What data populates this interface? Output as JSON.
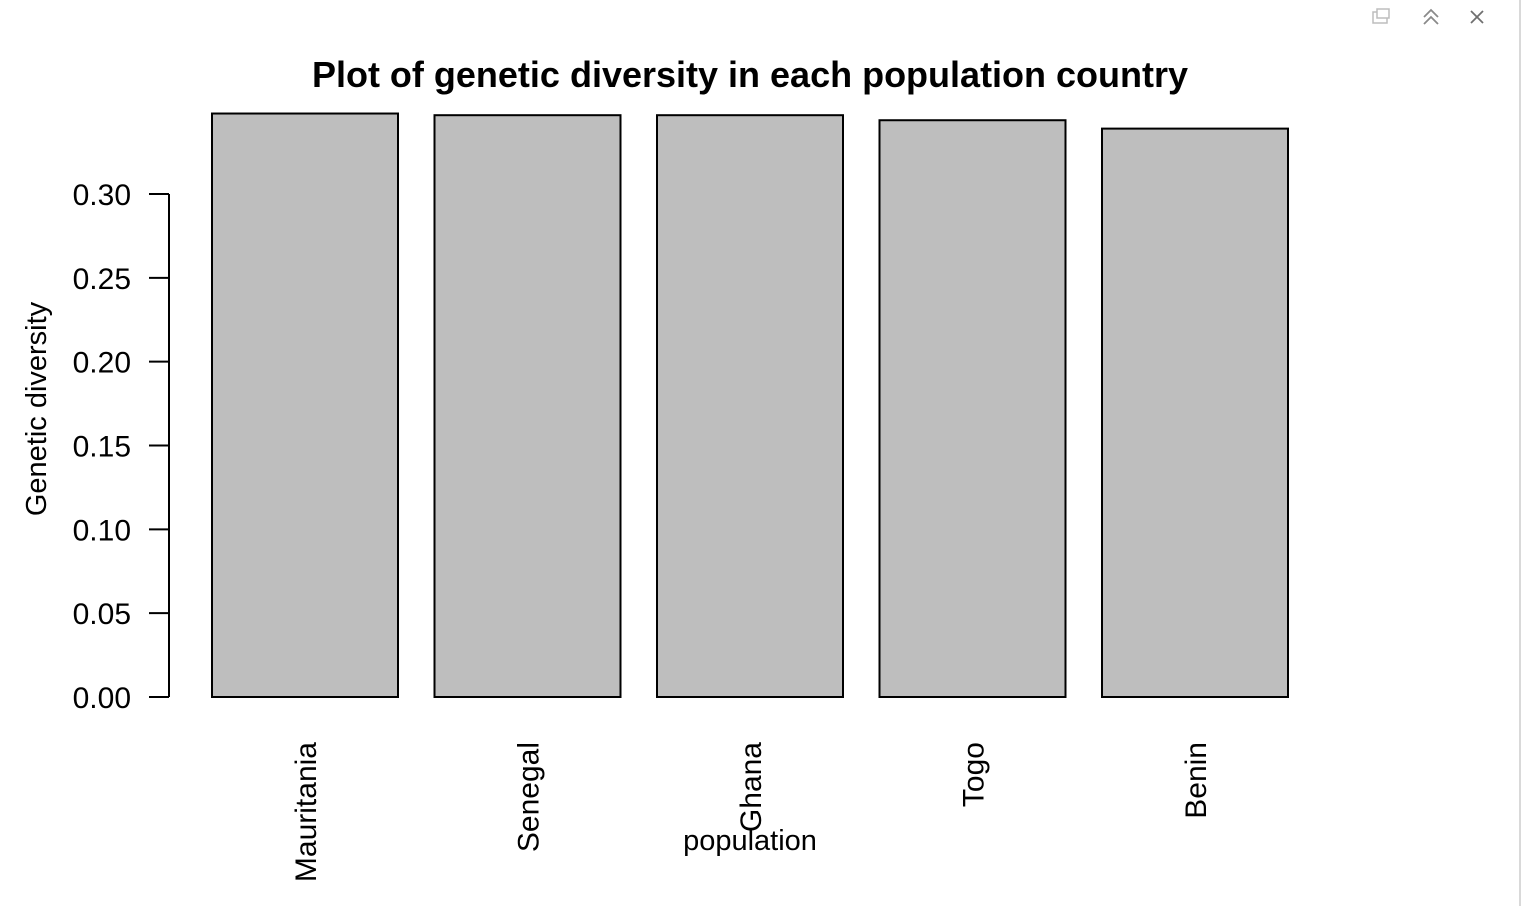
{
  "window_controls": {
    "popout_icon": "popout-icon",
    "collapse_icon": "double-chevron-up-icon",
    "close_icon": "close-icon"
  },
  "chart_data": {
    "type": "bar",
    "title": "Plot of genetic diversity in each population country",
    "xlabel": "population",
    "ylabel": "Genetic diversity",
    "categories": [
      "Mauritania",
      "Senegal",
      "Ghana",
      "Togo",
      "Benin"
    ],
    "values": [
      0.348,
      0.347,
      0.347,
      0.344,
      0.339
    ],
    "ylim": [
      0,
      0.3
    ],
    "yticks": [
      0.0,
      0.05,
      0.1,
      0.15,
      0.2,
      0.25,
      0.3
    ],
    "ytick_labels": [
      "0.00",
      "0.05",
      "0.10",
      "0.15",
      "0.20",
      "0.25",
      "0.30"
    ],
    "bar_color": "#bebebe",
    "bar_edge_color": "#000000",
    "grid": false,
    "legend": "none"
  }
}
